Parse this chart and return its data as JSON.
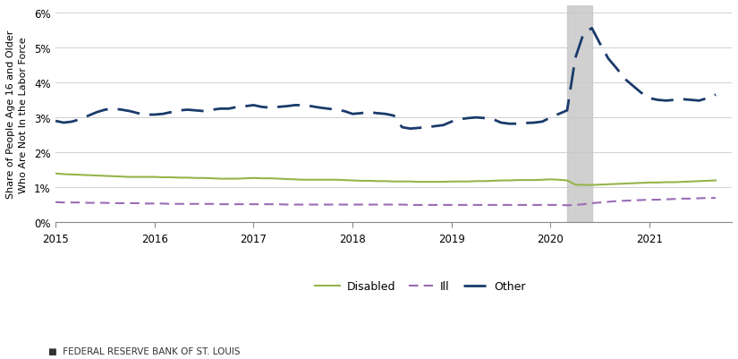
{
  "ylabel": "Share of People Age 16 and Older\nWho Are Not In the Labor Force",
  "ylim": [
    0,
    0.062
  ],
  "yticks": [
    0.0,
    0.01,
    0.02,
    0.03,
    0.04,
    0.05,
    0.06
  ],
  "ytick_labels": [
    "0%",
    "1%",
    "2%",
    "3%",
    "4%",
    "5%",
    "6%"
  ],
  "xlim": [
    2015.0,
    2021.83
  ],
  "xticks": [
    2015,
    2016,
    2017,
    2018,
    2019,
    2020,
    2021
  ],
  "footer": "FEDERAL RESERVE BANK OF ST. LOUIS",
  "shaded_region": [
    2020.17,
    2020.42
  ],
  "background_color": "#ffffff",
  "grid_color": "#d0d0d0",
  "disabled_color": "#96b44a",
  "ill_color": "#9b6bb5",
  "other_color": "#1a3a6b",
  "disabled": {
    "x": [
      2015.0,
      2015.083,
      2015.167,
      2015.25,
      2015.333,
      2015.417,
      2015.5,
      2015.583,
      2015.667,
      2015.75,
      2015.833,
      2015.917,
      2016.0,
      2016.083,
      2016.167,
      2016.25,
      2016.333,
      2016.417,
      2016.5,
      2016.583,
      2016.667,
      2016.75,
      2016.833,
      2016.917,
      2017.0,
      2017.083,
      2017.167,
      2017.25,
      2017.333,
      2017.417,
      2017.5,
      2017.583,
      2017.667,
      2017.75,
      2017.833,
      2017.917,
      2018.0,
      2018.083,
      2018.167,
      2018.25,
      2018.333,
      2018.417,
      2018.5,
      2018.583,
      2018.667,
      2018.75,
      2018.833,
      2018.917,
      2019.0,
      2019.083,
      2019.167,
      2019.25,
      2019.333,
      2019.417,
      2019.5,
      2019.583,
      2019.667,
      2019.75,
      2019.833,
      2019.917,
      2020.0,
      2020.083,
      2020.167,
      2020.25,
      2020.333,
      2020.417,
      2020.5,
      2020.583,
      2020.667,
      2020.75,
      2020.833,
      2020.917,
      2021.0,
      2021.083,
      2021.167,
      2021.25,
      2021.333,
      2021.417,
      2021.5,
      2021.583,
      2021.667
    ],
    "y": [
      0.014,
      0.0138,
      0.0137,
      0.0136,
      0.0135,
      0.0134,
      0.0133,
      0.0132,
      0.0131,
      0.013,
      0.013,
      0.013,
      0.013,
      0.0129,
      0.0129,
      0.0128,
      0.0128,
      0.0127,
      0.0127,
      0.0126,
      0.0125,
      0.0125,
      0.0125,
      0.0126,
      0.0127,
      0.0126,
      0.0126,
      0.0125,
      0.0124,
      0.0123,
      0.0122,
      0.0122,
      0.0122,
      0.0122,
      0.0122,
      0.0121,
      0.012,
      0.0119,
      0.0119,
      0.0118,
      0.0118,
      0.0117,
      0.0117,
      0.0117,
      0.0116,
      0.0116,
      0.0116,
      0.0116,
      0.0117,
      0.0117,
      0.0117,
      0.0118,
      0.0118,
      0.0119,
      0.012,
      0.012,
      0.0121,
      0.0121,
      0.0121,
      0.0122,
      0.0123,
      0.0122,
      0.012,
      0.0108,
      0.0107,
      0.0107,
      0.0108,
      0.0109,
      0.011,
      0.0111,
      0.0112,
      0.0113,
      0.0114,
      0.0114,
      0.0115,
      0.0115,
      0.0116,
      0.0117,
      0.0118,
      0.0119,
      0.012
    ]
  },
  "ill": {
    "x": [
      2015.0,
      2015.083,
      2015.167,
      2015.25,
      2015.333,
      2015.417,
      2015.5,
      2015.583,
      2015.667,
      2015.75,
      2015.833,
      2015.917,
      2016.0,
      2016.083,
      2016.167,
      2016.25,
      2016.333,
      2016.417,
      2016.5,
      2016.583,
      2016.667,
      2016.75,
      2016.833,
      2016.917,
      2017.0,
      2017.083,
      2017.167,
      2017.25,
      2017.333,
      2017.417,
      2017.5,
      2017.583,
      2017.667,
      2017.75,
      2017.833,
      2017.917,
      2018.0,
      2018.083,
      2018.167,
      2018.25,
      2018.333,
      2018.417,
      2018.5,
      2018.583,
      2018.667,
      2018.75,
      2018.833,
      2018.917,
      2019.0,
      2019.083,
      2019.167,
      2019.25,
      2019.333,
      2019.417,
      2019.5,
      2019.583,
      2019.667,
      2019.75,
      2019.833,
      2019.917,
      2020.0,
      2020.083,
      2020.167,
      2020.25,
      2020.333,
      2020.417,
      2020.5,
      2020.583,
      2020.667,
      2020.75,
      2020.833,
      2020.917,
      2021.0,
      2021.083,
      2021.167,
      2021.25,
      2021.333,
      2021.417,
      2021.5,
      2021.583,
      2021.667
    ],
    "y": [
      0.0058,
      0.0057,
      0.0057,
      0.0057,
      0.0056,
      0.0056,
      0.0056,
      0.0055,
      0.0055,
      0.0055,
      0.0055,
      0.0054,
      0.0054,
      0.0054,
      0.0053,
      0.0053,
      0.0053,
      0.0053,
      0.0053,
      0.0053,
      0.0052,
      0.0052,
      0.0052,
      0.0052,
      0.0052,
      0.0052,
      0.0052,
      0.0052,
      0.0051,
      0.0051,
      0.0051,
      0.0051,
      0.0051,
      0.0051,
      0.0051,
      0.0051,
      0.0051,
      0.0051,
      0.0051,
      0.0051,
      0.0051,
      0.0051,
      0.0051,
      0.005,
      0.005,
      0.005,
      0.005,
      0.005,
      0.005,
      0.005,
      0.005,
      0.005,
      0.005,
      0.005,
      0.005,
      0.005,
      0.005,
      0.005,
      0.005,
      0.005,
      0.005,
      0.005,
      0.0049,
      0.005,
      0.0052,
      0.0055,
      0.0057,
      0.0059,
      0.0061,
      0.0062,
      0.0063,
      0.0064,
      0.0065,
      0.0065,
      0.0066,
      0.0067,
      0.0068,
      0.0068,
      0.0069,
      0.007,
      0.007
    ]
  },
  "other": {
    "x": [
      2015.0,
      2015.083,
      2015.167,
      2015.25,
      2015.333,
      2015.417,
      2015.5,
      2015.583,
      2015.667,
      2015.75,
      2015.833,
      2015.917,
      2016.0,
      2016.083,
      2016.167,
      2016.25,
      2016.333,
      2016.417,
      2016.5,
      2016.583,
      2016.667,
      2016.75,
      2016.833,
      2016.917,
      2017.0,
      2017.083,
      2017.167,
      2017.25,
      2017.333,
      2017.417,
      2017.5,
      2017.583,
      2017.667,
      2017.75,
      2017.833,
      2017.917,
      2018.0,
      2018.083,
      2018.167,
      2018.25,
      2018.333,
      2018.417,
      2018.5,
      2018.583,
      2018.667,
      2018.75,
      2018.833,
      2018.917,
      2019.0,
      2019.083,
      2019.167,
      2019.25,
      2019.333,
      2019.417,
      2019.5,
      2019.583,
      2019.667,
      2019.75,
      2019.833,
      2019.917,
      2020.0,
      2020.083,
      2020.167,
      2020.25,
      2020.333,
      2020.417,
      2020.5,
      2020.583,
      2020.667,
      2020.75,
      2020.833,
      2020.917,
      2021.0,
      2021.083,
      2021.167,
      2021.25,
      2021.333,
      2021.417,
      2021.5,
      2021.583,
      2021.667
    ],
    "y": [
      0.029,
      0.0285,
      0.0288,
      0.0295,
      0.0305,
      0.0315,
      0.0322,
      0.0325,
      0.0322,
      0.0318,
      0.0312,
      0.0308,
      0.0308,
      0.031,
      0.0315,
      0.032,
      0.0322,
      0.032,
      0.0318,
      0.0322,
      0.0325,
      0.0325,
      0.033,
      0.0332,
      0.0335,
      0.033,
      0.0328,
      0.033,
      0.0332,
      0.0335,
      0.0335,
      0.0332,
      0.0328,
      0.0325,
      0.0322,
      0.0318,
      0.031,
      0.0312,
      0.0315,
      0.0312,
      0.031,
      0.0305,
      0.0272,
      0.0268,
      0.027,
      0.0272,
      0.0275,
      0.0278,
      0.0288,
      0.0295,
      0.0298,
      0.03,
      0.0298,
      0.0295,
      0.0285,
      0.0282,
      0.0282,
      0.0284,
      0.0285,
      0.0288,
      0.03,
      0.031,
      0.032,
      0.047,
      0.054,
      0.0555,
      0.051,
      0.0468,
      0.044,
      0.041,
      0.039,
      0.037,
      0.0355,
      0.035,
      0.0348,
      0.035,
      0.0352,
      0.035,
      0.0348,
      0.0355,
      0.0365
    ]
  }
}
